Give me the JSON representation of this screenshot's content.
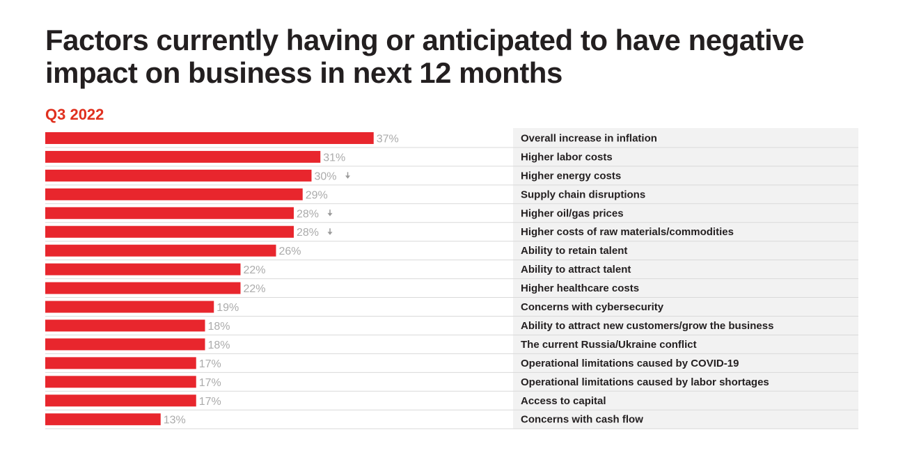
{
  "chart_data": {
    "type": "bar",
    "orientation": "horizontal",
    "title": "Factors currently having or anticipated to have negative impact on business in next 12 months",
    "subtitle": "Q3 2022",
    "value_suffix": "%",
    "xlim": [
      0,
      100
    ],
    "grid": false,
    "legend": "none",
    "bar_color": "#e8262d",
    "accent_color": "#e0301e",
    "categories": [
      "Overall increase in inflation",
      "Higher labor costs",
      "Higher energy costs",
      "Supply chain disruptions",
      "Higher oil/gas prices",
      "Higher costs of raw materials/commodities",
      "Ability to retain talent",
      "Ability to attract talent",
      "Higher healthcare costs",
      "Concerns with cybersecurity",
      "Ability to attract new customers/grow the business",
      "The current Russia/Ukraine conflict",
      "Operational limitations caused by COVID-19",
      "Operational limitations caused by labor shortages",
      "Access to capital",
      "Concerns with cash flow"
    ],
    "values": [
      37,
      31,
      30,
      29,
      28,
      28,
      26,
      22,
      22,
      19,
      18,
      18,
      17,
      17,
      17,
      13
    ],
    "trend_down": [
      false,
      false,
      true,
      false,
      true,
      true,
      false,
      false,
      false,
      false,
      false,
      false,
      false,
      false,
      false,
      false
    ],
    "trend_icon": "arrow-down-icon"
  }
}
